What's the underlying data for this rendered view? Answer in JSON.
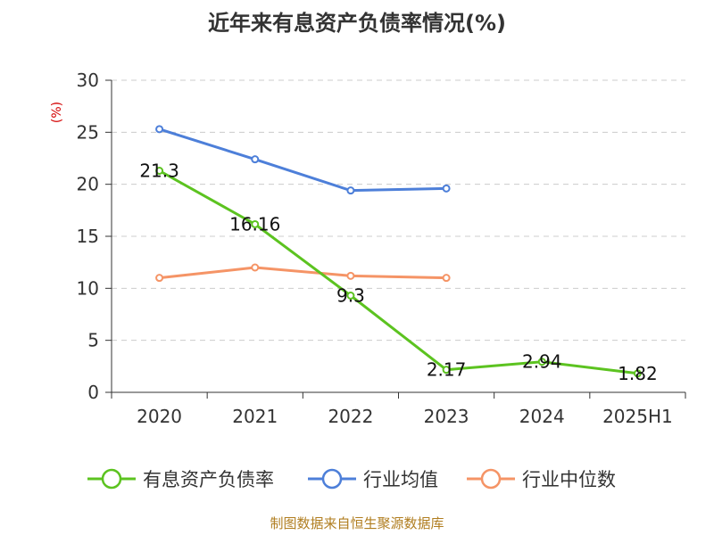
{
  "chart_data": {
    "type": "line",
    "title": "近年来有息资产负债率情况(%)",
    "ylabel": "(%)",
    "categories": [
      "2020",
      "2021",
      "2022",
      "2023",
      "2024",
      "2025H1"
    ],
    "ylim": [
      0,
      30
    ],
    "yticks": [
      "0",
      "5",
      "10",
      "15",
      "20",
      "25",
      "30"
    ],
    "grid": true,
    "legend_position": "bottom",
    "series": [
      {
        "name": "有息资产负债率",
        "color": "#5cc320",
        "values": [
          21.3,
          16.16,
          9.3,
          2.17,
          2.94,
          1.82
        ],
        "labels": [
          "21.3",
          "16.16",
          "9.3",
          "2.17",
          "2.94",
          "1.82"
        ]
      },
      {
        "name": "行业均值",
        "color": "#4d7fd9",
        "values": [
          25.3,
          22.4,
          19.4,
          19.6,
          null,
          null
        ]
      },
      {
        "name": "行业中位数",
        "color": "#f59466",
        "values": [
          11.0,
          12.0,
          11.2,
          11.0,
          null,
          null
        ]
      }
    ],
    "source": "制图数据来自恒生聚源数据库"
  }
}
